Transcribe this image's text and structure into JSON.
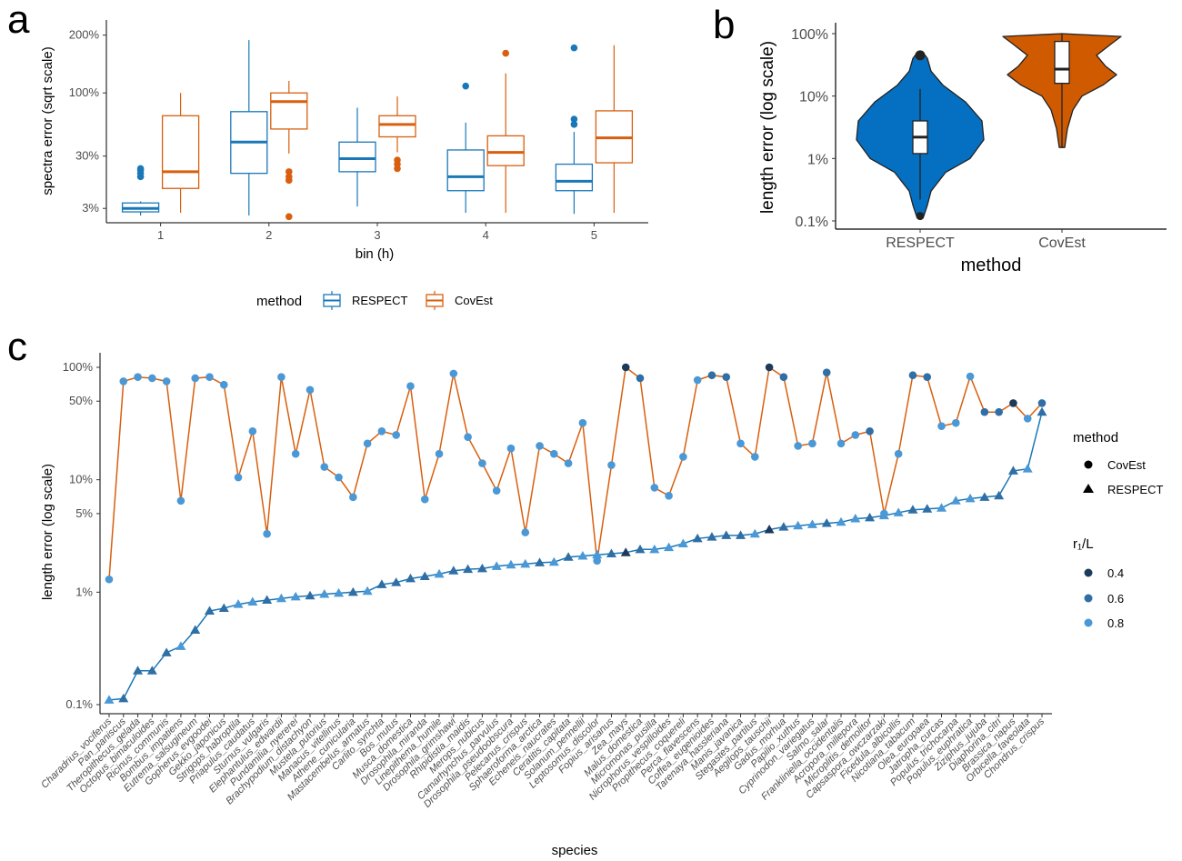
{
  "panels": {
    "a": "a",
    "b": "b",
    "c": "c"
  },
  "colors": {
    "respect": "#1a78b8",
    "covest": "#d95f0e",
    "respect_fill": "#0570c1",
    "covest_fill": "#d05a00",
    "dark": "#1b3a5c",
    "mid": "#2f6fa5",
    "light": "#4a98d6"
  },
  "chart_data": [
    {
      "type": "box",
      "panel": "a",
      "xlabel": "bin (h)",
      "ylabel": "spectra error (sqrt scale)",
      "yscale": "sqrt",
      "yticks": [
        3,
        30,
        100,
        200
      ],
      "ytick_labels": [
        "3%",
        "30%",
        "100%",
        "200%"
      ],
      "categories": [
        "1",
        "2",
        "3",
        "4",
        "5"
      ],
      "legend": {
        "title": "method",
        "entries": [
          "RESPECT",
          "CovEst"
        ]
      },
      "series": [
        {
          "name": "RESPECT",
          "color": "#1a78b8",
          "boxes": [
            {
              "min": 1.5,
              "q1": 2.2,
              "median": 3.0,
              "q3": 4.5,
              "max": 5.0,
              "outliers": [
                16,
                18,
                20,
                21
              ]
            },
            {
              "min": 1.5,
              "q1": 18,
              "median": 42,
              "q3": 75,
              "max": 190,
              "outliers": []
            },
            {
              "min": 3.5,
              "q1": 19,
              "median": 28,
              "q3": 42,
              "max": 80,
              "outliers": []
            },
            {
              "min": 2.0,
              "q1": 9,
              "median": 16,
              "q3": 35,
              "max": 62,
              "outliers": [
                110
              ]
            },
            {
              "min": 1.8,
              "q1": 9,
              "median": 13.5,
              "q3": 24,
              "max": 52,
              "outliers": [
                60,
                66,
                175
              ]
            }
          ]
        },
        {
          "name": "CovEst",
          "color": "#d95f0e",
          "boxes": [
            {
              "min": 2.0,
              "q1": 10,
              "median": 19,
              "q3": 70,
              "max": 100,
              "outliers": []
            },
            {
              "min": 32,
              "q1": 55,
              "median": 88,
              "q3": 100,
              "max": 118,
              "outliers": [
                14,
                16,
                19,
                1.3
              ]
            },
            {
              "min": 33,
              "q1": 47,
              "median": 60,
              "q3": 70,
              "max": 95,
              "outliers": [
                21,
                24,
                27
              ]
            },
            {
              "min": 2.0,
              "q1": 23,
              "median": 33,
              "q3": 48,
              "max": 130,
              "outliers": [
                165
              ]
            },
            {
              "min": 2.0,
              "q1": 25,
              "median": 46,
              "q3": 76,
              "max": 180,
              "outliers": []
            }
          ]
        }
      ]
    },
    {
      "type": "violin",
      "panel": "b",
      "xlabel": "method",
      "ylabel": "length error (log scale)",
      "yscale": "log",
      "yticks": [
        0.1,
        1,
        10,
        100
      ],
      "ytick_labels": [
        "0.1%",
        "1%",
        "10%",
        "100%"
      ],
      "categories": [
        "RESPECT",
        "CovEst"
      ],
      "series": [
        {
          "name": "RESPECT",
          "min": 0.12,
          "q1": 1.2,
          "median": 2.2,
          "q3": 4.0,
          "max": 48,
          "whisker_high": 13,
          "whisker_low": 0.22
        },
        {
          "name": "CovEst",
          "min": 1.5,
          "q1": 16,
          "median": 27,
          "q3": 75,
          "max": 100,
          "whisker_high": 100,
          "whisker_low": 1.5
        }
      ]
    },
    {
      "type": "line",
      "panel": "c",
      "xlabel": "species",
      "ylabel": "length error (log scale)",
      "yscale": "log",
      "yticks": [
        0.1,
        1,
        5,
        10,
        50,
        100
      ],
      "ytick_labels": [
        "0.1%",
        "1%",
        "5%",
        "10%",
        "50%",
        "100%"
      ],
      "legend": {
        "method_title": "method",
        "method_entries": [
          "CovEst",
          "RESPECT"
        ],
        "r_title": "r₁/L",
        "r_entries": [
          "0.4",
          "0.6",
          "0.8"
        ]
      },
      "categories": [
        "Charadrius_vociferus",
        "Pan_paniscus",
        "Theropithecus_gelada",
        "Octopus_bimaculoides",
        "Ricinus_communis",
        "Bombus_impatiens",
        "Eutrema_salsugineum",
        "Gopherus_evgoodei",
        "Gekko_japonicus",
        "Strigops_habroptila",
        "Priapulus_caudatus",
        "Sturnus_vulgaris",
        "Elephantulus_edwardii",
        "Pundamilia_nyererei",
        "Brachypodium_distachyon",
        "Mustela_putorius",
        "Manacus_vitellinus",
        "Athene_cunicularia",
        "Mastacembelus_armatus",
        "Carlito_syrichta",
        "Bos_mutus",
        "Musca_domestica",
        "Drosophila_miranda",
        "Linepithema_humile",
        "Drosophila_grimshawi",
        "Rhipidistia_maidis",
        "Merops_nubicus",
        "Camarhynchus_parvulus",
        "Drosophila_pseudoobscura",
        "Pelecanus_crispus",
        "Sphaeroforma_arctica",
        "Echeneis_naucrates",
        "Ceratitis_capitata",
        "Solanum_pennellii",
        "Leptosomus_discolor",
        "Fopius_arisanus",
        "Zea_mays",
        "Malus_domestica",
        "Micromonas_pusilla",
        "Nicrophorus_vespilloides",
        "Propithecus_coquereli",
        "Perca_flavescens",
        "Coffea_eugenioides",
        "Tarenaya_hassleriana",
        "Manis_javanica",
        "Stegastes_partitus",
        "Aegilops_tauschii",
        "Gadus_morhua",
        "Papilio_xuthus",
        "Cyprinodon_variegatus",
        "Salmo_salar",
        "Frankliniella_occidentalis",
        "Acropora_millepora",
        "Microplitis_demolitor",
        "Capsaspora_owczarzaki",
        "Ficedula_albicollis",
        "Nicotiana_tabacum",
        "Olea_europaea",
        "Jatropha_curcas",
        "Populus_trichocarpa",
        "Populus_euphratica",
        "Ziziphus_jujuba",
        "Diaphorina_citri",
        "Brassica_napus",
        "Orbicella_faveolata",
        "Chondrus_crispus"
      ],
      "series": [
        {
          "name": "CovEst",
          "color": "#d95f0e",
          "values": [
            1.3,
            75,
            82,
            80,
            75,
            6.5,
            80,
            82,
            70,
            10.5,
            27,
            3.3,
            82,
            17,
            63,
            13,
            10.5,
            7,
            21,
            27,
            25,
            68,
            6.7,
            17,
            88,
            24,
            14,
            8,
            19,
            3.4,
            20,
            17,
            14,
            32,
            1.9,
            13.5,
            100,
            80,
            8.5,
            7.2,
            16,
            77,
            85,
            82,
            21,
            16,
            100,
            82,
            20,
            21,
            90,
            21,
            25,
            27,
            5,
            17,
            85,
            82,
            30,
            32,
            83,
            40,
            40,
            48,
            35,
            48
          ],
          "r1L": [
            0.8,
            0.8,
            0.8,
            0.8,
            0.8,
            0.8,
            0.8,
            0.8,
            0.8,
            0.8,
            0.8,
            0.8,
            0.8,
            0.8,
            0.8,
            0.8,
            0.8,
            0.8,
            0.8,
            0.8,
            0.8,
            0.8,
            0.8,
            0.8,
            0.8,
            0.8,
            0.8,
            0.8,
            0.8,
            0.8,
            0.8,
            0.8,
            0.8,
            0.8,
            0.8,
            0.8,
            0.4,
            0.6,
            0.8,
            0.8,
            0.8,
            0.8,
            0.6,
            0.6,
            0.8,
            0.8,
            0.4,
            0.6,
            0.8,
            0.8,
            0.6,
            0.8,
            0.8,
            0.6,
            0.8,
            0.8,
            0.6,
            0.6,
            0.8,
            0.8,
            0.8,
            0.6,
            0.6,
            0.4,
            0.8,
            0.6
          ]
        },
        {
          "name": "RESPECT",
          "color": "#1a78b8",
          "values": [
            0.11,
            0.113,
            0.2,
            0.2,
            0.29,
            0.33,
            0.46,
            0.68,
            0.72,
            0.78,
            0.82,
            0.85,
            0.88,
            0.91,
            0.93,
            0.96,
            0.98,
            1.0,
            1.02,
            1.17,
            1.22,
            1.32,
            1.38,
            1.45,
            1.55,
            1.6,
            1.62,
            1.7,
            1.75,
            1.78,
            1.83,
            1.85,
            2.05,
            2.1,
            2.15,
            2.2,
            2.25,
            2.4,
            2.4,
            2.5,
            2.7,
            3.0,
            3.1,
            3.2,
            3.2,
            3.3,
            3.6,
            3.8,
            3.9,
            4.0,
            4.1,
            4.2,
            4.5,
            4.6,
            4.8,
            5.1,
            5.4,
            5.5,
            5.6,
            6.5,
            6.8,
            7.0,
            7.2,
            12,
            12.5,
            40
          ],
          "r1L": [
            0.8,
            0.6,
            0.6,
            0.6,
            0.6,
            0.8,
            0.6,
            0.6,
            0.6,
            0.8,
            0.8,
            0.6,
            0.8,
            0.8,
            0.6,
            0.8,
            0.8,
            0.6,
            0.8,
            0.6,
            0.6,
            0.6,
            0.6,
            0.8,
            0.6,
            0.6,
            0.6,
            0.8,
            0.8,
            0.8,
            0.6,
            0.8,
            0.6,
            0.8,
            0.8,
            0.6,
            0.4,
            0.6,
            0.8,
            0.8,
            0.8,
            0.6,
            0.6,
            0.6,
            0.6,
            0.8,
            0.4,
            0.6,
            0.8,
            0.8,
            0.6,
            0.8,
            0.8,
            0.6,
            0.8,
            0.8,
            0.6,
            0.6,
            0.8,
            0.8,
            0.8,
            0.6,
            0.6,
            0.6,
            0.8,
            0.6
          ]
        }
      ]
    }
  ]
}
